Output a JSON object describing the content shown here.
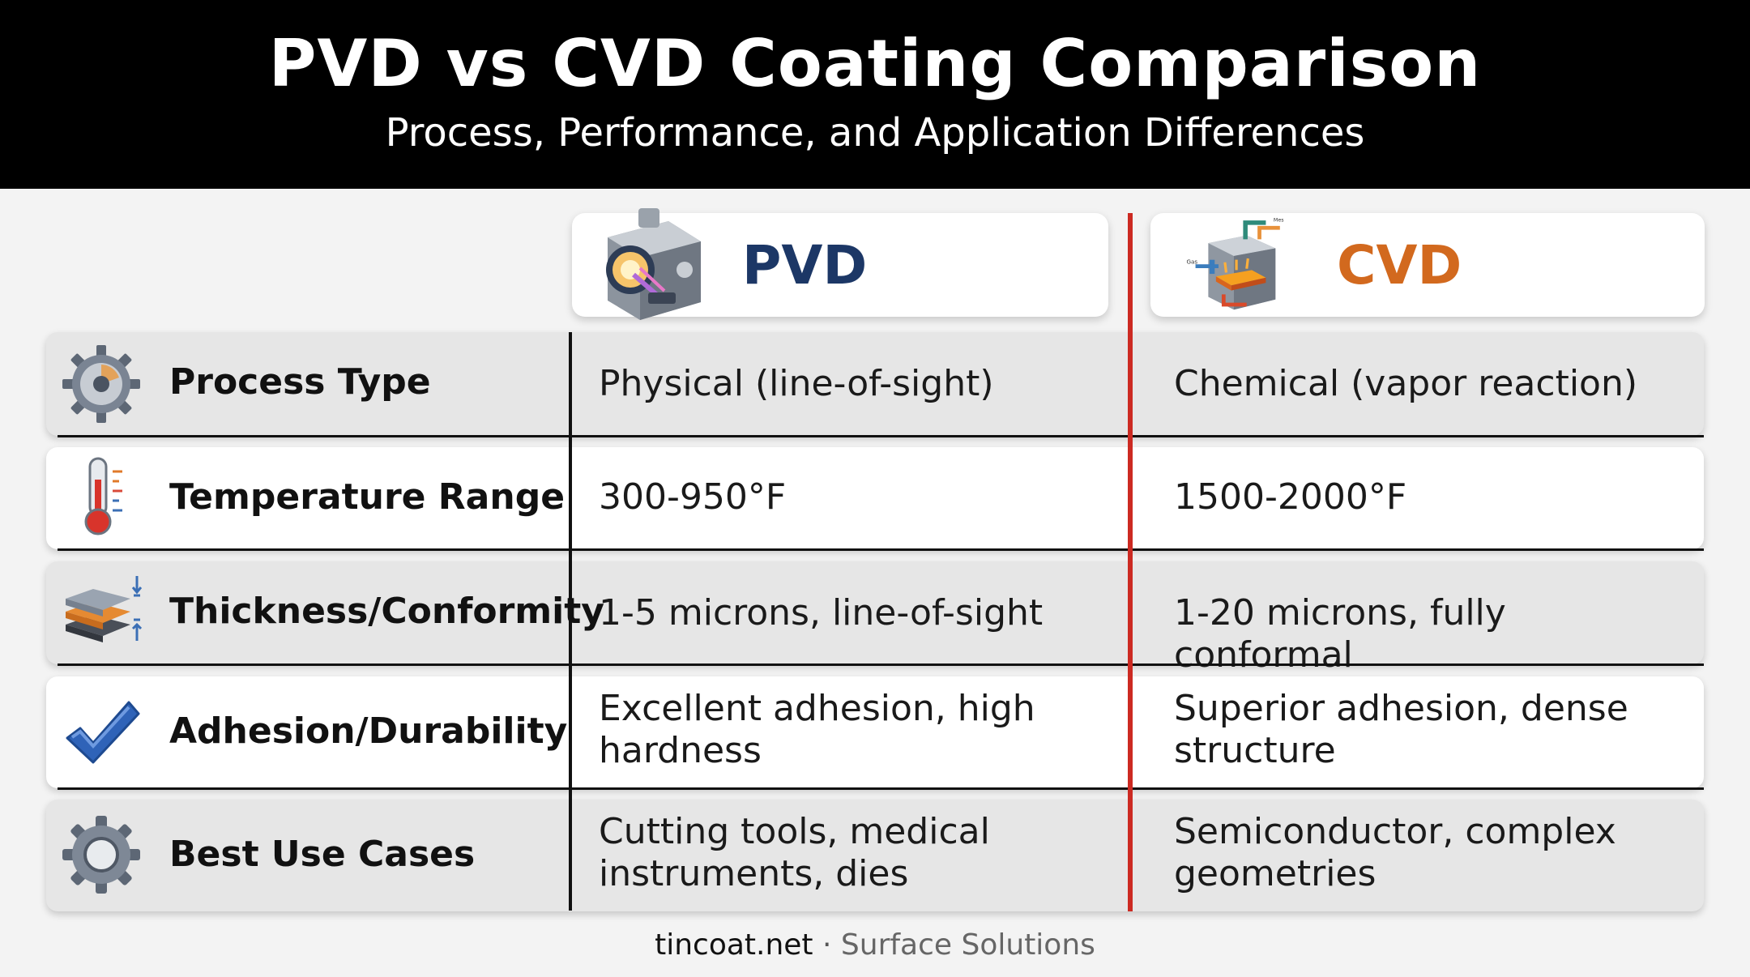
{
  "header": {
    "title": "PVD vs CVD Coating Comparison",
    "subtitle": "Process, Performance, and Application Differences"
  },
  "columns": [
    {
      "label": "PVD",
      "icon": "pvd-chamber-icon",
      "color": "#1c3766"
    },
    {
      "label": "CVD",
      "icon": "cvd-reactor-icon",
      "color": "#d2691e",
      "icon_labels": {
        "gas": "Gas",
        "mes": "Mes"
      }
    }
  ],
  "rows": [
    {
      "label": "Process Type",
      "icon": "gear-dial-icon",
      "pvd": "Physical (line-of-sight)",
      "cvd": "Chemical (vapor reaction)"
    },
    {
      "label": "Temperature Range",
      "icon": "thermometer-icon",
      "pvd": "300-950°F",
      "cvd": "1500-2000°F"
    },
    {
      "label": "Thickness/Conformity",
      "icon": "layers-icon",
      "pvd": "1-5 microns, line-of-sight",
      "cvd": "1-20 microns, fully conformal"
    },
    {
      "label": "Adhesion/Durability",
      "icon": "checkmark-icon",
      "pvd": "Excellent adhesion, high hardness",
      "cvd": "Superior adhesion, dense structure"
    },
    {
      "label": "Best Use Cases",
      "icon": "gear-icon",
      "pvd": "Cutting tools, medical instruments, dies",
      "cvd": "Semiconductor, complex geometries"
    }
  ],
  "footer": {
    "brand": "tincoat.net",
    "separator": "·",
    "tagline": "Surface Solutions"
  },
  "accent_divider_color": "#cc2a22"
}
